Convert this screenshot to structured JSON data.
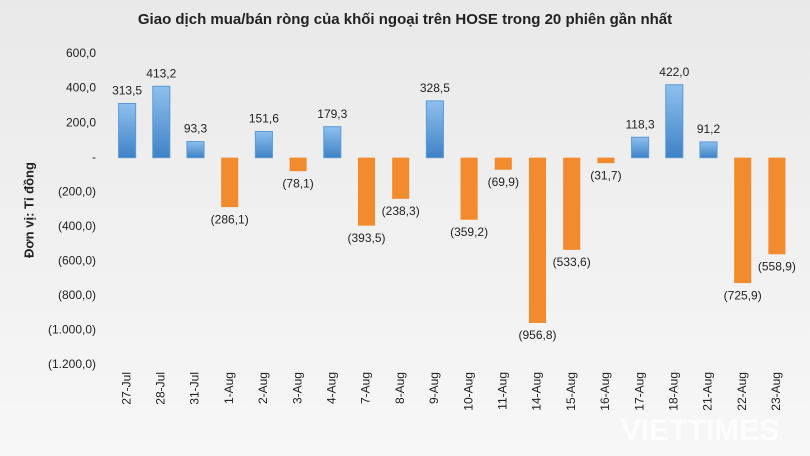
{
  "chart_data": {
    "type": "bar",
    "title": "Giao dịch mua/bán ròng của khối ngoại trên HOSE trong 20 phiên gần nhất",
    "y_label": "Đơn vị: Tỉ đồng",
    "watermark": "VIETTIMES",
    "categories": [
      "27-Jul",
      "28-Jul",
      "31-Jul",
      "1-Aug",
      "2-Aug",
      "3-Aug",
      "4-Aug",
      "7-Aug",
      "8-Aug",
      "9-Aug",
      "10-Aug",
      "11-Aug",
      "14-Aug",
      "15-Aug",
      "16-Aug",
      "17-Aug",
      "18-Aug",
      "21-Aug",
      "22-Aug",
      "23-Aug"
    ],
    "values": [
      313.5,
      413.2,
      93.3,
      -286.1,
      151.6,
      -78.1,
      179.3,
      -393.5,
      -238.3,
      328.5,
      -359.2,
      -69.9,
      -956.8,
      -533.6,
      -31.7,
      118.3,
      422.0,
      91.2,
      -725.9,
      -558.9
    ],
    "value_labels": [
      "313,5",
      "413,2",
      "93,3",
      "(286,1)",
      "151,6",
      "(78,1)",
      "179,3",
      "(393,5)",
      "(238,3)",
      "328,5",
      "(359,2)",
      "(69,9)",
      "(956,8)",
      "(533,6)",
      "(31,7)",
      "118,3",
      "422,0",
      "91,2",
      "(725,9)",
      "(558,9)"
    ],
    "positive_color": "#5b9bd5",
    "negative_color": "#f28a2e",
    "ylim": [
      -1200,
      600
    ],
    "yticks": [
      {
        "value": 600,
        "label": "600,0"
      },
      {
        "value": 400,
        "label": "400,0"
      },
      {
        "value": 200,
        "label": "200,0"
      },
      {
        "value": 0,
        "label": "-"
      },
      {
        "value": -200,
        "label": "(200,0)"
      },
      {
        "value": -400,
        "label": "(400,0)"
      },
      {
        "value": -600,
        "label": "(600,0)"
      },
      {
        "value": -800,
        "label": "(800,0)"
      },
      {
        "value": -1000,
        "label": "(1.000,0)"
      },
      {
        "value": -1200,
        "label": "(1.200,0)"
      }
    ]
  }
}
